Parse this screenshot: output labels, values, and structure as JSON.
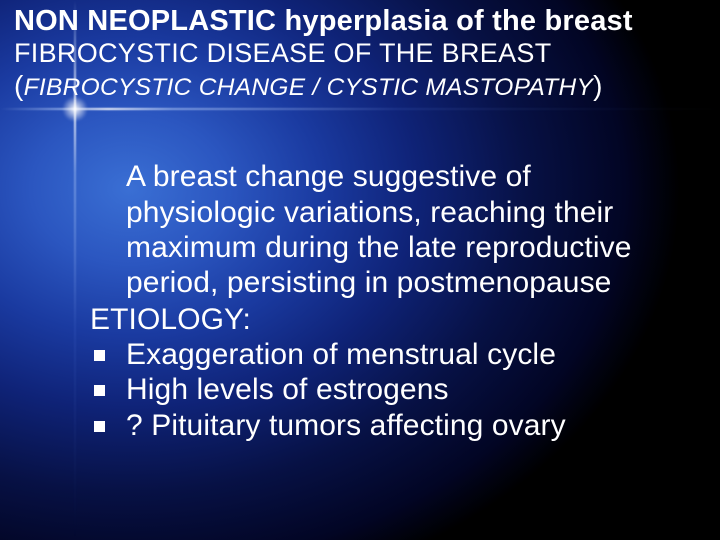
{
  "colors": {
    "text": "#ffffff",
    "accent": "#ffffff",
    "bg_center": "#3a6fd4",
    "bg_mid": "#0f2378",
    "bg_edge": "#000000"
  },
  "typography": {
    "family": "Trebuchet MS / Gill Sans",
    "title1_size_pt": 22,
    "title2_size_pt": 20,
    "title3_size_pt": 18,
    "body_size_pt": 23
  },
  "titles": {
    "line1": "NON NEOPLASTIC hyperplasia of the breast",
    "line2": "FIBROCYSTIC DISEASE OF THE BREAST",
    "line3_open": "(",
    "line3_text": "FIBROCYSTIC CHANGE / CYSTIC MASTOPATHY",
    "line3_close": ")"
  },
  "body": {
    "definition": "A breast change suggestive of physiologic variations, reaching their maximum during the late reproductive period, persisting in postmenopause",
    "etiology_label": "ETIOLOGY:",
    "bullets": [
      {
        "plain": "Exaggeration of menstrual cycle"
      },
      {
        "pre": "High levels of ",
        "accent": "estrogens"
      },
      {
        "pre": "? ",
        "accent": "Pituitary tumors",
        "post": " affecting ovary"
      }
    ]
  }
}
